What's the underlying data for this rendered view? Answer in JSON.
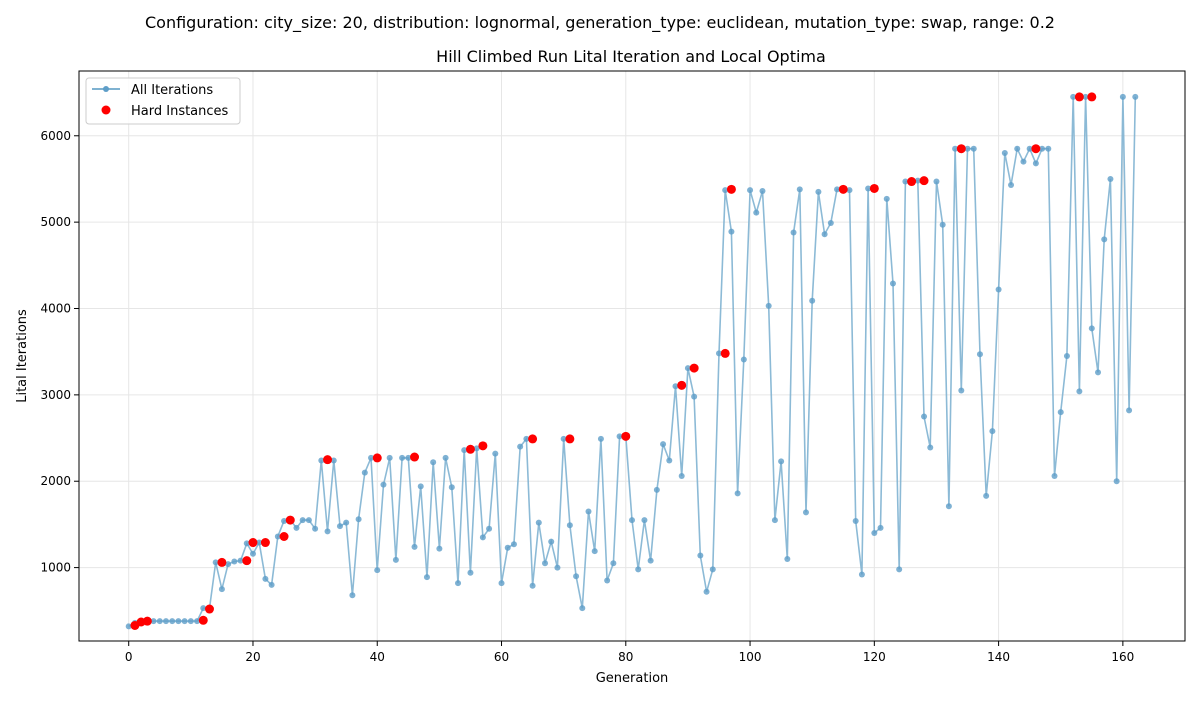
{
  "chart_data": {
    "type": "scatter",
    "suptitle": "Configuration: city_size: 20, distribution: lognormal, generation_type: euclidean, mutation_type: swap, range: 0.2",
    "title": "Hill Climbed Run Lital Iteration and Local Optima",
    "xlabel": "Generation",
    "ylabel": "Lital Iterations",
    "xlim": [
      -8,
      170
    ],
    "ylim": [
      150,
      6750
    ],
    "xticks": [
      0,
      20,
      40,
      60,
      80,
      100,
      120,
      140,
      160
    ],
    "yticks": [
      1000,
      2000,
      3000,
      4000,
      5000,
      6000
    ],
    "grid": true,
    "legend_position": "upper-left",
    "colors": {
      "line": "#7fb2d1",
      "marker": "#5e9ec8",
      "hard": "#ff0000"
    },
    "series": [
      {
        "name": "All Iterations",
        "style": "line-marker",
        "x": [
          0,
          1,
          2,
          3,
          4,
          5,
          6,
          7,
          8,
          9,
          10,
          11,
          12,
          13,
          14,
          15,
          16,
          17,
          18,
          19,
          20,
          21,
          22,
          23,
          24,
          25,
          26,
          27,
          28,
          29,
          30,
          31,
          32,
          33,
          34,
          35,
          36,
          37,
          38,
          39,
          40,
          41,
          42,
          43,
          44,
          45,
          46,
          47,
          48,
          49,
          50,
          51,
          52,
          53,
          54,
          55,
          56,
          57,
          58,
          59,
          60,
          61,
          62,
          63,
          64,
          65,
          66,
          67,
          68,
          69,
          70,
          71,
          72,
          73,
          74,
          75,
          76,
          77,
          78,
          79,
          80,
          81,
          82,
          83,
          84,
          85,
          86,
          87,
          88,
          89,
          90,
          91,
          92,
          93,
          94,
          95,
          96,
          97,
          98,
          99,
          100,
          101,
          102,
          103,
          104,
          105,
          106,
          107,
          108,
          109,
          110,
          111,
          112,
          113,
          114,
          115,
          116,
          117,
          118,
          119,
          120,
          121,
          122,
          123,
          124,
          125,
          126,
          127,
          128,
          129,
          130,
          131,
          132,
          133,
          134,
          135,
          136,
          137,
          138,
          139,
          140,
          141,
          142,
          143,
          144,
          145,
          146,
          147,
          148,
          149,
          150,
          151,
          152,
          153,
          154,
          155,
          156,
          157,
          158,
          159,
          160,
          161,
          162
        ],
        "y": [
          320,
          360,
          370,
          370,
          380,
          380,
          380,
          380,
          380,
          380,
          380,
          380,
          530,
          530,
          1060,
          750,
          1040,
          1070,
          1080,
          1280,
          1160,
          1290,
          870,
          800,
          1360,
          1540,
          1550,
          1460,
          1550,
          1550,
          1450,
          2240,
          1420,
          2240,
          1480,
          1520,
          680,
          1560,
          2100,
          2270,
          970,
          1960,
          2270,
          1090,
          2270,
          2270,
          1240,
          1940,
          890,
          2220,
          1220,
          2270,
          1930,
          820,
          2360,
          940,
          2380,
          1350,
          1450,
          2320,
          820,
          1230,
          1270,
          2400,
          2490,
          790,
          1520,
          1050,
          1300,
          1000,
          2490,
          1490,
          900,
          530,
          1650,
          1190,
          2490,
          850,
          1050,
          2520,
          2520,
          1550,
          980,
          1550,
          1080,
          1900,
          2430,
          2240,
          3100,
          2060,
          3310,
          2980,
          1140,
          720,
          980,
          3480,
          5370,
          4890,
          1860,
          3410,
          5370,
          5110,
          5360,
          4030,
          1550,
          2230,
          1100,
          4880,
          5380,
          1640,
          4090,
          5350,
          4860,
          4990,
          5380,
          5370,
          5370,
          1540,
          920,
          5390,
          1400,
          1460,
          5270,
          4290,
          980,
          5470,
          5470,
          5480,
          2750,
          2390,
          5470,
          4970,
          1710,
          5850,
          3050,
          5850,
          5850,
          3470,
          1830,
          2580,
          4220,
          5800,
          5430,
          5850,
          5700,
          5850,
          5680,
          5850,
          5850,
          2060,
          2800,
          3450,
          6450,
          3040,
          6450,
          3770,
          3260,
          4800,
          5500,
          2000,
          6450,
          2820,
          6450
        ]
      },
      {
        "name": "Hard Instances",
        "style": "scatter",
        "x": [
          1,
          2,
          3,
          12,
          13,
          15,
          19,
          20,
          22,
          25,
          26,
          32,
          40,
          46,
          55,
          57,
          65,
          71,
          80,
          89,
          91,
          96,
          97,
          115,
          120,
          126,
          128,
          134,
          146,
          153,
          155
        ],
        "y": [
          330,
          370,
          380,
          390,
          520,
          1060,
          1080,
          1290,
          1290,
          1360,
          1550,
          2250,
          2270,
          2280,
          2370,
          2410,
          2490,
          2490,
          2520,
          3110,
          3310,
          3480,
          5380,
          5380,
          5390,
          5470,
          5480,
          5850,
          5850,
          6450,
          6450
        ]
      }
    ]
  }
}
